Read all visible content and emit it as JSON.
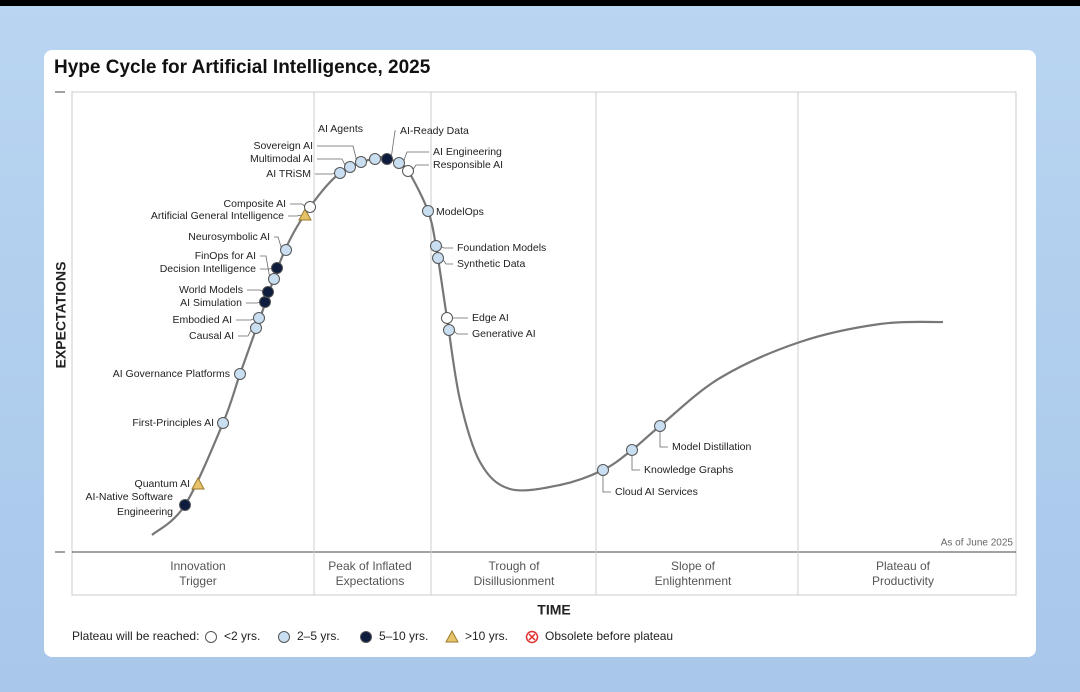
{
  "title": "Hype Cycle for Artificial Intelligence, 2025",
  "y_axis_label": "EXPECTATIONS",
  "x_axis_label": "TIME",
  "as_of": "As of June 2025",
  "phases": [
    [
      "Innovation",
      "Trigger"
    ],
    [
      "Peak of Inflated",
      "Expectations"
    ],
    [
      "Trough of",
      "Disillusionment"
    ],
    [
      "Slope of",
      "Enlightenment"
    ],
    [
      "Plateau of",
      "Productivity"
    ]
  ],
  "legend": {
    "title": "Plateau will be reached:",
    "items": [
      "<2 yrs.",
      "2–5 yrs.",
      "5–10 yrs.",
      ">10 yrs.",
      "Obsolete before plateau"
    ]
  },
  "technologies": [
    {
      "label": [
        "AI-Native Software",
        "Engineering"
      ],
      "plateau": "5–10 yrs."
    },
    {
      "label": "Quantum AI",
      "plateau": ">10 yrs."
    },
    {
      "label": "First-Principles AI",
      "plateau": "2–5 yrs."
    },
    {
      "label": "AI Governance Platforms",
      "plateau": "2–5 yrs."
    },
    {
      "label": "Causal AI",
      "plateau": "2–5 yrs."
    },
    {
      "label": "Embodied AI",
      "plateau": "2–5 yrs."
    },
    {
      "label": "AI Simulation",
      "plateau": "5–10 yrs."
    },
    {
      "label": "World Models",
      "plateau": "5–10 yrs."
    },
    {
      "label": "Decision Intelligence",
      "plateau": "5–10 yrs."
    },
    {
      "label": "FinOps for AI",
      "plateau": "2–5 yrs."
    },
    {
      "label": "Neurosymbolic AI",
      "plateau": "2–5 yrs."
    },
    {
      "label": "Artificial General Intelligence",
      "plateau": ">10 yrs."
    },
    {
      "label": "Composite AI",
      "plateau": "<2 yrs."
    },
    {
      "label": "AI TRiSM",
      "plateau": "2–5 yrs."
    },
    {
      "label": "Multimodal AI",
      "plateau": "2–5 yrs."
    },
    {
      "label": "Sovereign AI",
      "plateau": "2–5 yrs."
    },
    {
      "label": "AI Agents",
      "plateau": "2–5 yrs."
    },
    {
      "label": "AI-Ready Data",
      "plateau": "5–10 yrs."
    },
    {
      "label": "AI Engineering",
      "plateau": "2–5 yrs."
    },
    {
      "label": "Responsible AI",
      "plateau": "<2 yrs."
    },
    {
      "label": "ModelOps",
      "plateau": "2–5 yrs."
    },
    {
      "label": "Foundation Models",
      "plateau": "2–5 yrs."
    },
    {
      "label": "Synthetic Data",
      "plateau": "2–5 yrs."
    },
    {
      "label": "Edge AI",
      "plateau": "<2 yrs."
    },
    {
      "label": "Generative AI",
      "plateau": "2–5 yrs."
    },
    {
      "label": "Cloud AI Services",
      "plateau": "2–5 yrs."
    },
    {
      "label": "Knowledge Graphs",
      "plateau": "2–5 yrs."
    },
    {
      "label": "Model Distillation",
      "plateau": "2–5 yrs."
    }
  ]
}
